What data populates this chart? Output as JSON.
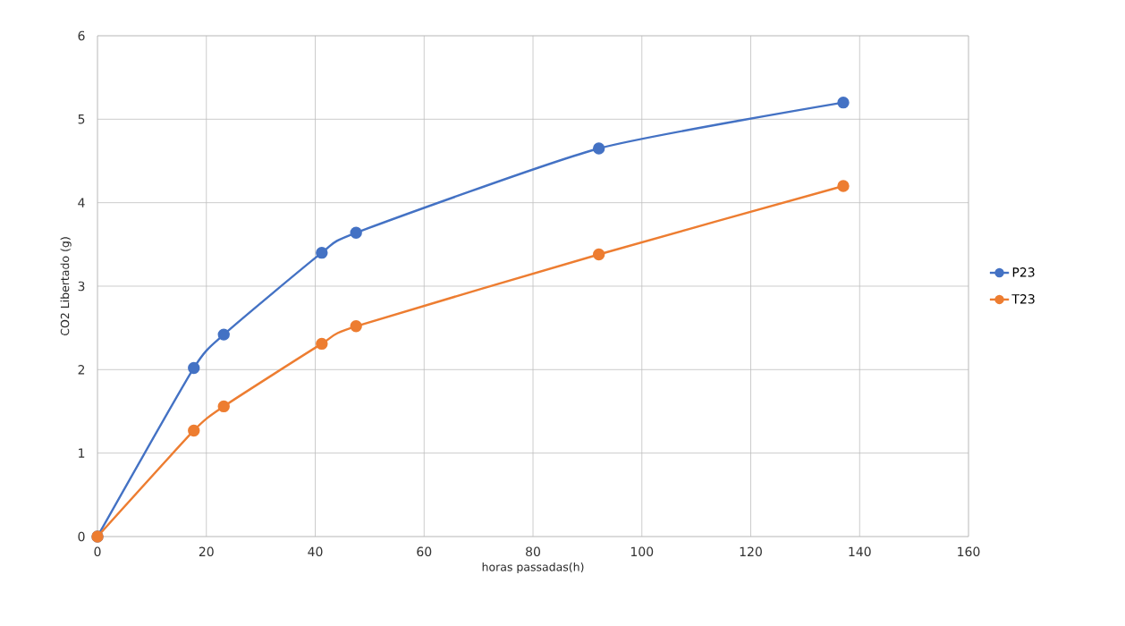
{
  "chart_data": {
    "type": "line",
    "xlabel": "horas passadas(h)",
    "ylabel": "CO2 Libertado (g)",
    "x": [
      0,
      17.7,
      23.2,
      41.2,
      47.5,
      92.1,
      137
    ],
    "series": [
      {
        "name": "P23",
        "color": "#4472c4",
        "values": [
          0,
          2.02,
          2.42,
          3.4,
          3.64,
          4.65,
          5.2
        ]
      },
      {
        "name": "T23",
        "color": "#ed7d31",
        "values": [
          0,
          1.27,
          1.56,
          2.31,
          2.52,
          3.38,
          4.2
        ]
      }
    ],
    "xlim": [
      0,
      160
    ],
    "xticks": [
      0,
      20,
      40,
      60,
      80,
      100,
      120,
      140,
      160
    ],
    "ylim": [
      0,
      6
    ],
    "yticks": [
      0,
      1,
      2,
      3,
      4,
      5,
      6
    ],
    "grid": true,
    "legend": "right",
    "marker": "circle",
    "line_style": "solid"
  }
}
